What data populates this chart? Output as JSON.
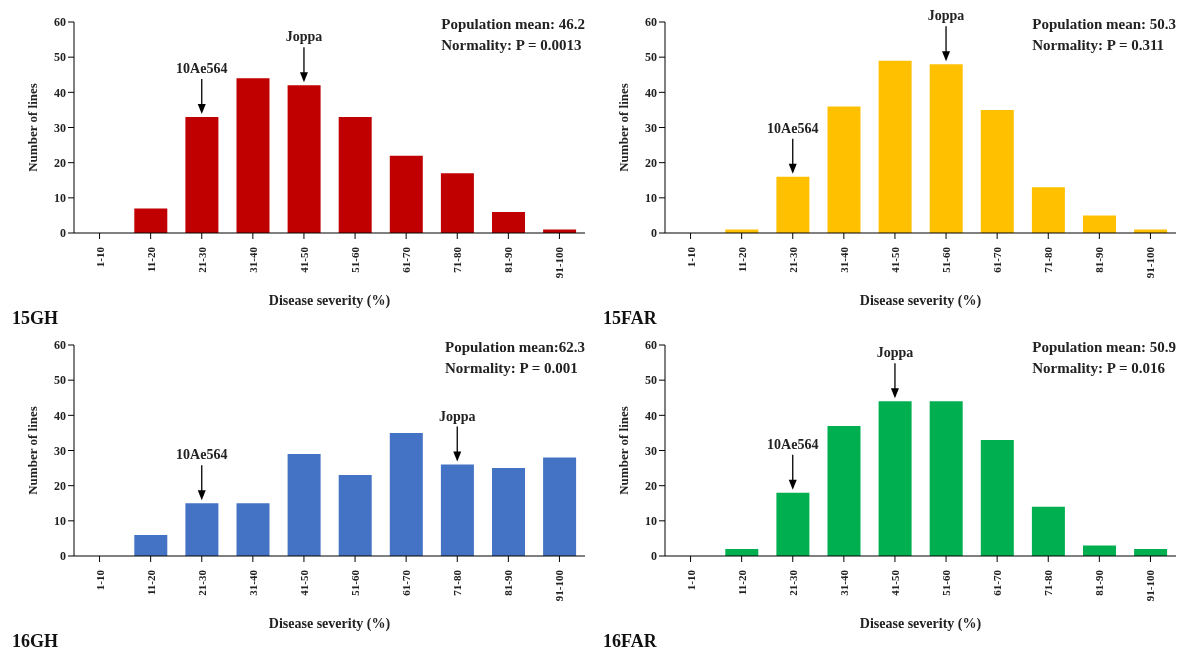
{
  "chart_data": [
    {
      "type": "bar",
      "title": "15GH",
      "xlabel": "Disease severity (%)",
      "ylabel": "Number  of lines",
      "categories": [
        "1-10",
        "11-20",
        "21-30",
        "31-40",
        "41-50",
        "51-60",
        "61-70",
        "71-80",
        "81-90",
        "91-100"
      ],
      "values": [
        0,
        7,
        33,
        44,
        42,
        33,
        22,
        17,
        6,
        1
      ],
      "color": "#c00000",
      "ylim": [
        0,
        60
      ],
      "yticks": [
        0,
        10,
        20,
        30,
        40,
        50,
        60
      ],
      "grid": false,
      "legend": false,
      "annotations": [
        {
          "text": "10Ae564",
          "x": "21-30",
          "y": 33
        },
        {
          "text": "Joppa",
          "x": "41-50",
          "y": 42
        },
        "Population mean: 46.2",
        "Normality: P = 0.0013"
      ]
    },
    {
      "type": "bar",
      "title": "15FAR",
      "xlabel": "Disease severity (%)",
      "ylabel": "Number  of lines",
      "categories": [
        "1-10",
        "11-20",
        "21-30",
        "31-40",
        "41-50",
        "51-60",
        "61-70",
        "71-80",
        "81-90",
        "91-100"
      ],
      "values": [
        0,
        1,
        16,
        36,
        49,
        48,
        35,
        13,
        5,
        1
      ],
      "color": "#ffc000",
      "ylim": [
        0,
        60
      ],
      "yticks": [
        0,
        10,
        20,
        30,
        40,
        50,
        60
      ],
      "grid": false,
      "legend": false,
      "annotations": [
        {
          "text": "10Ae564",
          "x": "21-30",
          "y": 16
        },
        {
          "text": "Joppa",
          "x": "51-60",
          "y": 48
        },
        "Population mean: 50.3",
        "Normality: P = 0.311"
      ]
    },
    {
      "type": "bar",
      "title": "16GH",
      "xlabel": "Disease severity (%)",
      "ylabel": "Number  of lines",
      "categories": [
        "1-10",
        "11-20",
        "21-30",
        "31-40",
        "41-50",
        "51-60",
        "61-70",
        "71-80",
        "81-90",
        "91-100"
      ],
      "values": [
        0,
        6,
        15,
        15,
        29,
        23,
        35,
        26,
        25,
        28
      ],
      "color": "#4472c4",
      "ylim": [
        0,
        60
      ],
      "yticks": [
        0,
        10,
        20,
        30,
        40,
        50,
        60
      ],
      "grid": false,
      "legend": false,
      "annotations": [
        {
          "text": "10Ae564",
          "x": "21-30",
          "y": 15
        },
        {
          "text": "Joppa",
          "x": "71-80",
          "y": 26
        },
        "Population mean:62.3",
        "Normality: P = 0.001"
      ]
    },
    {
      "type": "bar",
      "title": "16FAR",
      "xlabel": "Disease severity (%)",
      "ylabel": "Number  of lines",
      "categories": [
        "1-10",
        "11-20",
        "21-30",
        "31-40",
        "41-50",
        "51-60",
        "61-70",
        "71-80",
        "81-90",
        "91-100"
      ],
      "values": [
        0,
        2,
        18,
        37,
        44,
        44,
        33,
        14,
        3,
        2
      ],
      "color": "#00b050",
      "ylim": [
        0,
        60
      ],
      "yticks": [
        0,
        10,
        20,
        30,
        40,
        50,
        60
      ],
      "grid": false,
      "legend": false,
      "annotations": [
        {
          "text": "10Ae564",
          "x": "21-30",
          "y": 18
        },
        {
          "text": "Joppa",
          "x": "41-50",
          "y": 44
        },
        "Population mean: 50.9",
        "Normality: P = 0.016"
      ]
    }
  ]
}
